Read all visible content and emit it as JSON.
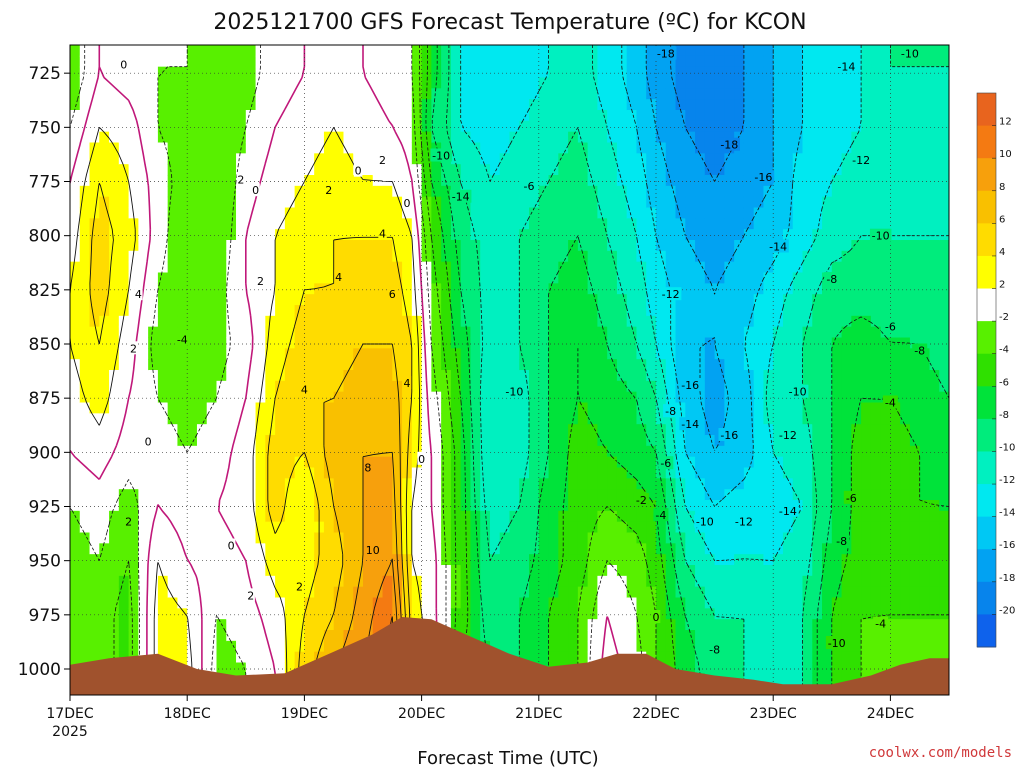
{
  "chart_data": {
    "type": "heatmap",
    "title": "2025121700 GFS Forecast Temperature (ºC) for KCON",
    "xlabel": "Forecast Time (UTC)",
    "ylabel": "",
    "x_ticks": [
      {
        "label": "17DEC",
        "sub": "2025",
        "t": 0
      },
      {
        "label": "18DEC",
        "t": 24
      },
      {
        "label": "19DEC",
        "t": 48
      },
      {
        "label": "20DEC",
        "t": 72
      },
      {
        "label": "21DEC",
        "t": 96
      },
      {
        "label": "22DEC",
        "t": 120
      },
      {
        "label": "23DEC",
        "t": 144
      },
      {
        "label": "24DEC",
        "t": 168
      }
    ],
    "xlim_hours": [
      0,
      180
    ],
    "y_ticks": [
      725,
      750,
      775,
      800,
      825,
      850,
      875,
      900,
      925,
      950,
      975,
      1000
    ],
    "ylim_hpa": [
      712,
      1012
    ],
    "colorbar": {
      "ticks": [
        12,
        10,
        8,
        6,
        4,
        2,
        -2,
        -4,
        -6,
        -8,
        -10,
        -12,
        -14,
        -16,
        -18,
        -20
      ],
      "bins": [
        {
          "lo": 12,
          "hi": 14,
          "color": "#e8641e"
        },
        {
          "lo": 10,
          "hi": 12,
          "color": "#f47a12"
        },
        {
          "lo": 8,
          "hi": 10,
          "color": "#f7a00c"
        },
        {
          "lo": 6,
          "hi": 8,
          "color": "#f9c000"
        },
        {
          "lo": 4,
          "hi": 6,
          "color": "#ffdc00"
        },
        {
          "lo": 2,
          "hi": 4,
          "color": "#ffff00"
        },
        {
          "lo": -2,
          "hi": 2,
          "color": "#ffffff"
        },
        {
          "lo": -4,
          "hi": -2,
          "color": "#58f000"
        },
        {
          "lo": -6,
          "hi": -4,
          "color": "#2fe000"
        },
        {
          "lo": -8,
          "hi": -6,
          "color": "#00e33a"
        },
        {
          "lo": -10,
          "hi": -8,
          "color": "#00ec7c"
        },
        {
          "lo": -12,
          "hi": -10,
          "color": "#00f0c0"
        },
        {
          "lo": -14,
          "hi": -12,
          "color": "#00e8f0"
        },
        {
          "lo": -16,
          "hi": -14,
          "color": "#00c8f4"
        },
        {
          "lo": -18,
          "hi": -16,
          "color": "#02a2f2"
        },
        {
          "lo": -20,
          "hi": -18,
          "color": "#0784ec"
        },
        {
          "lo": -22,
          "hi": -20,
          "color": "#0e62ec"
        }
      ]
    },
    "temperature_profiles": [
      {
        "t": 0,
        "temps": [
          -4,
          -2,
          0,
          1,
          2,
          2,
          1,
          0,
          -2,
          -3,
          -4,
          -4
        ]
      },
      {
        "t": 6,
        "temps": [
          0,
          2,
          4,
          5,
          5,
          4,
          3,
          1,
          -1,
          -2,
          -3,
          -3
        ]
      },
      {
        "t": 12,
        "temps": [
          -1,
          1,
          2,
          3,
          2,
          1,
          0,
          -1,
          -3,
          -4,
          -5,
          -5
        ]
      },
      {
        "t": 18,
        "temps": [
          -2,
          -2,
          -1,
          -1,
          -2,
          -3,
          -2,
          -1,
          0,
          2,
          3,
          3
        ]
      },
      {
        "t": 24,
        "temps": [
          -2,
          -3,
          -3,
          -4,
          -4,
          -4,
          -3,
          -2,
          -1,
          0,
          2,
          3
        ]
      },
      {
        "t": 30,
        "temps": [
          -3,
          -4,
          -4,
          -4,
          -3,
          -3,
          -2,
          -1,
          0,
          -1,
          -2,
          -3
        ]
      },
      {
        "t": 36,
        "temps": [
          -3,
          -2,
          -1,
          0,
          0,
          -1,
          0,
          1,
          1,
          0,
          -1,
          -2
        ]
      },
      {
        "t": 42,
        "temps": [
          -1,
          0,
          1,
          2,
          2,
          3,
          4,
          5,
          5,
          3,
          1,
          0
        ]
      },
      {
        "t": 48,
        "temps": [
          0,
          1,
          2,
          3,
          4,
          5,
          6,
          4,
          2,
          3,
          4,
          5
        ]
      },
      {
        "t": 54,
        "temps": [
          1,
          2,
          3,
          4,
          4,
          5,
          6,
          7,
          6,
          5,
          6,
          8
        ]
      },
      {
        "t": 60,
        "temps": [
          0,
          1,
          2,
          4,
          5,
          6,
          7,
          8,
          8,
          8,
          9,
          10
        ]
      },
      {
        "t": 66,
        "temps": [
          -1,
          0,
          2,
          4,
          5,
          6,
          7,
          8,
          9,
          10,
          12,
          13
        ]
      },
      {
        "t": 70,
        "temps": [
          -2,
          -1,
          0,
          2,
          3,
          4,
          4,
          3,
          2,
          2,
          3,
          4
        ]
      },
      {
        "t": 74,
        "temps": [
          -7,
          -8,
          -6,
          -4,
          -3,
          -2,
          -1,
          0,
          0,
          1,
          1,
          2
        ]
      },
      {
        "t": 80,
        "temps": [
          -12,
          -12,
          -10,
          -9,
          -8,
          -7,
          -6,
          -5,
          -5,
          -5,
          -5,
          -6
        ]
      },
      {
        "t": 86,
        "temps": [
          -14,
          -13,
          -12,
          -11,
          -11,
          -11,
          -12,
          -12,
          -11,
          -10,
          -9,
          -8
        ]
      },
      {
        "t": 92,
        "temps": [
          -13,
          -12,
          -11,
          -10,
          -10,
          -10,
          -11,
          -11,
          -10,
          -9,
          -8,
          -8
        ]
      },
      {
        "t": 98,
        "temps": [
          -12,
          -11,
          -10,
          -9,
          -8,
          -8,
          -8,
          -8,
          -7,
          -7,
          -6,
          -6
        ]
      },
      {
        "t": 104,
        "temps": [
          -11,
          -10,
          -9,
          -8,
          -7,
          -6,
          -6,
          -5,
          -5,
          -5,
          -4,
          -4
        ]
      },
      {
        "t": 110,
        "temps": [
          -13,
          -12,
          -11,
          -10,
          -9,
          -8,
          -7,
          -6,
          -4,
          -2,
          0,
          1
        ]
      },
      {
        "t": 116,
        "temps": [
          -15,
          -14,
          -13,
          -12,
          -11,
          -10,
          -8,
          -7,
          -5,
          -3,
          -2,
          -1
        ]
      },
      {
        "t": 120,
        "temps": [
          -17,
          -16,
          -15,
          -14,
          -13,
          -12,
          -10,
          -8,
          -6,
          -5,
          -4,
          -4
        ]
      },
      {
        "t": 126,
        "temps": [
          -19,
          -18,
          -17,
          -16,
          -15,
          -16,
          -15,
          -14,
          -12,
          -10,
          -8,
          -7
        ]
      },
      {
        "t": 132,
        "temps": [
          -19,
          -19,
          -18,
          -17,
          -16,
          -16,
          -17,
          -16,
          -14,
          -12,
          -10,
          -9
        ]
      },
      {
        "t": 138,
        "temps": [
          -18,
          -18,
          -17,
          -16,
          -15,
          -14,
          -15,
          -15,
          -13,
          -12,
          -10,
          -10
        ]
      },
      {
        "t": 144,
        "temps": [
          -16,
          -16,
          -16,
          -15,
          -13,
          -12,
          -11,
          -12,
          -13,
          -12,
          -11,
          -11
        ]
      },
      {
        "t": 150,
        "temps": [
          -14,
          -14,
          -13,
          -13,
          -11,
          -10,
          -10,
          -11,
          -12,
          -11,
          -10,
          -10
        ]
      },
      {
        "t": 156,
        "temps": [
          -13,
          -13,
          -12,
          -11,
          -9,
          -8,
          -8,
          -8,
          -8,
          -7,
          -6,
          -6
        ]
      },
      {
        "t": 162,
        "temps": [
          -12,
          -12,
          -11,
          -10,
          -9,
          -7,
          -6,
          -5,
          -5,
          -5,
          -4,
          -4
        ]
      },
      {
        "t": 168,
        "temps": [
          -10,
          -11,
          -11,
          -10,
          -9,
          -8,
          -6,
          -5,
          -5,
          -5,
          -4,
          -3
        ]
      },
      {
        "t": 174,
        "temps": [
          -10,
          -11,
          -11,
          -10,
          -9,
          -8,
          -7,
          -6,
          -6,
          -5,
          -4,
          -3
        ]
      },
      {
        "t": 180,
        "temps": [
          -10,
          -11,
          -11,
          -10,
          -9,
          -9,
          -8,
          -7,
          -6,
          -5,
          -4,
          -3
        ]
      }
    ],
    "surface_pressure": [
      {
        "t": 0,
        "p": 998
      },
      {
        "t": 8,
        "p": 995
      },
      {
        "t": 18,
        "p": 993
      },
      {
        "t": 26,
        "p": 1000
      },
      {
        "t": 34,
        "p": 1003
      },
      {
        "t": 44,
        "p": 1002
      },
      {
        "t": 54,
        "p": 992
      },
      {
        "t": 62,
        "p": 984
      },
      {
        "t": 68,
        "p": 976
      },
      {
        "t": 74,
        "p": 977
      },
      {
        "t": 82,
        "p": 985
      },
      {
        "t": 90,
        "p": 993
      },
      {
        "t": 98,
        "p": 999
      },
      {
        "t": 106,
        "p": 997
      },
      {
        "t": 112,
        "p": 993
      },
      {
        "t": 118,
        "p": 993
      },
      {
        "t": 124,
        "p": 1000
      },
      {
        "t": 132,
        "p": 1003
      },
      {
        "t": 140,
        "p": 1005
      },
      {
        "t": 146,
        "p": 1007
      },
      {
        "t": 156,
        "p": 1007
      },
      {
        "t": 164,
        "p": 1003
      },
      {
        "t": 170,
        "p": 998
      },
      {
        "t": 176,
        "p": 995
      },
      {
        "t": 180,
        "p": 995
      }
    ],
    "contour_labels": [
      {
        "text": "0",
        "t": 11,
        "p": 721
      },
      {
        "text": "2",
        "t": 12,
        "p": 932
      },
      {
        "text": "4",
        "t": 14,
        "p": 827
      },
      {
        "text": "2",
        "t": 13,
        "p": 852
      },
      {
        "text": "0",
        "t": 16,
        "p": 895
      },
      {
        "text": "-4",
        "t": 23,
        "p": 848
      },
      {
        "text": "2",
        "t": 35,
        "p": 774
      },
      {
        "text": "0",
        "t": 38,
        "p": 779
      },
      {
        "text": "2",
        "t": 39,
        "p": 821
      },
      {
        "text": "0",
        "t": 33,
        "p": 943
      },
      {
        "text": "2",
        "t": 37,
        "p": 966
      },
      {
        "text": "2",
        "t": 47,
        "p": 962
      },
      {
        "text": "2",
        "t": 53,
        "p": 779
      },
      {
        "text": "4",
        "t": 48,
        "p": 871
      },
      {
        "text": "4",
        "t": 55,
        "p": 819
      },
      {
        "text": "0",
        "t": 59,
        "p": 770
      },
      {
        "text": "2",
        "t": 64,
        "p": 765
      },
      {
        "text": "4",
        "t": 64,
        "p": 799
      },
      {
        "text": "6",
        "t": 66,
        "p": 827
      },
      {
        "text": "8",
        "t": 61,
        "p": 907
      },
      {
        "text": "10",
        "t": 62,
        "p": 945
      },
      {
        "text": "4",
        "t": 69,
        "p": 868
      },
      {
        "text": "0",
        "t": 69,
        "p": 785
      },
      {
        "text": "0",
        "t": 72,
        "p": 903
      },
      {
        "text": "-10",
        "t": 76,
        "p": 763
      },
      {
        "text": "-14",
        "t": 80,
        "p": 782
      },
      {
        "text": "-6",
        "t": 94,
        "p": 777
      },
      {
        "text": "-10",
        "t": 91,
        "p": 872
      },
      {
        "text": "-18",
        "t": 122,
        "p": 716
      },
      {
        "text": "-12",
        "t": 123,
        "p": 827
      },
      {
        "text": "-16",
        "t": 127,
        "p": 869
      },
      {
        "text": "-8",
        "t": 123,
        "p": 881
      },
      {
        "text": "-14",
        "t": 127,
        "p": 887
      },
      {
        "text": "-6",
        "t": 122,
        "p": 905
      },
      {
        "text": "-2",
        "t": 117,
        "p": 922
      },
      {
        "text": "-4",
        "t": 121,
        "p": 929
      },
      {
        "text": "-10",
        "t": 130,
        "p": 932
      },
      {
        "text": "-12",
        "t": 138,
        "p": 932
      },
      {
        "text": "-16",
        "t": 135,
        "p": 892
      },
      {
        "text": "-18",
        "t": 135,
        "p": 758
      },
      {
        "text": "-16",
        "t": 142,
        "p": 773
      },
      {
        "text": "-14",
        "t": 145,
        "p": 805
      },
      {
        "text": "-12",
        "t": 147,
        "p": 892
      },
      {
        "text": "-10",
        "t": 149,
        "p": 872
      },
      {
        "text": "-14",
        "t": 147,
        "p": 927
      },
      {
        "text": "-8",
        "t": 156,
        "p": 820
      },
      {
        "text": "-8",
        "t": 158,
        "p": 941
      },
      {
        "text": "-6",
        "t": 160,
        "p": 921
      },
      {
        "text": "-10",
        "t": 157,
        "p": 988
      },
      {
        "text": "-12",
        "t": 162,
        "p": 765
      },
      {
        "text": "-14",
        "t": 159,
        "p": 722
      },
      {
        "text": "-10",
        "t": 166,
        "p": 800
      },
      {
        "text": "-6",
        "t": 168,
        "p": 842
      },
      {
        "text": "-4",
        "t": 168,
        "p": 877
      },
      {
        "text": "-8",
        "t": 174,
        "p": 853
      },
      {
        "text": "-10",
        "t": 172,
        "p": 716
      },
      {
        "text": "-4",
        "t": 166,
        "p": 979
      },
      {
        "text": "0",
        "t": 120,
        "p": 976
      },
      {
        "text": "-8",
        "t": 132,
        "p": 991
      }
    ]
  },
  "credit": "coolwx.com/models"
}
